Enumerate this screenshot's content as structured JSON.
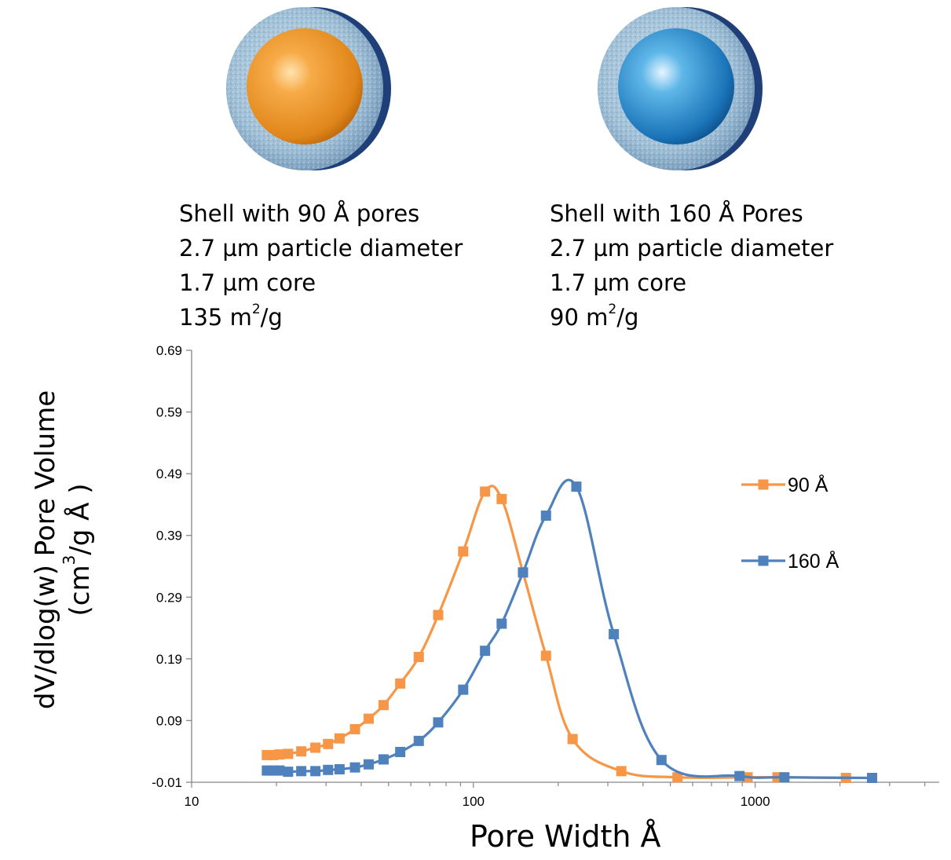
{
  "particles": [
    {
      "core_color": "orange",
      "caption": {
        "line1": "Shell with 90 Å pores",
        "line2": "2.7 µm particle diameter",
        "line3": "1.7 µm core",
        "line4_value": "135 m",
        "line4_sup": "2",
        "line4_unit": "/g"
      }
    },
    {
      "core_color": "blue",
      "caption": {
        "line1": "Shell with 160 Å Pores",
        "line2": "2.7 µm particle diameter",
        "line3": "1.7 µm core",
        "line4_value": "90 m",
        "line4_sup": "2",
        "line4_unit": "/g"
      }
    }
  ],
  "axis_text": {
    "ylabel_main": "dV/dlog(w) Pore Volume",
    "ylabel_unit_pre": "(cm",
    "ylabel_unit_sup": "3",
    "ylabel_unit_post": "/g Å )",
    "xlabel": "Pore Width Å"
  },
  "chart_data": {
    "type": "line",
    "x_scale": "log",
    "xlim": [
      10,
      4500
    ],
    "ylim": [
      -0.01,
      0.69
    ],
    "x_ticks": [
      10,
      100,
      1000
    ],
    "x_tick_labels": [
      "10",
      "100",
      "1000"
    ],
    "y_ticks": [
      -0.01,
      0.09,
      0.19,
      0.29,
      0.39,
      0.49,
      0.59,
      0.69
    ],
    "y_tick_labels": [
      "-0.01",
      "0.09",
      "0.19",
      "0.29",
      "0.39",
      "0.49",
      "0.59",
      "0.69"
    ],
    "xlabel": "Pore Width Å",
    "ylabel": "dV/dlog(w) Pore Volume (cm3/g Å )",
    "grid": false,
    "legend_position": "right",
    "series": [
      {
        "name": "90 Å",
        "color": "#F79646",
        "x": [
          18.5,
          19.5,
          20.5,
          22,
          24.5,
          27.5,
          30.5,
          33.5,
          38,
          42.5,
          48,
          55,
          64,
          75,
          92,
          110,
          126,
          150,
          181,
          225,
          335,
          530,
          940,
          1200,
          2100
        ],
        "y": [
          0.034,
          0.034,
          0.035,
          0.036,
          0.04,
          0.046,
          0.052,
          0.061,
          0.076,
          0.093,
          0.115,
          0.15,
          0.193,
          0.261,
          0.364,
          0.461,
          0.449,
          0.33,
          0.195,
          0.06,
          0.008,
          -0.002,
          -0.002,
          -0.002,
          -0.003
        ]
      },
      {
        "name": "160 Å",
        "color": "#4F81BD",
        "x": [
          18.5,
          19.5,
          20.5,
          22,
          24.5,
          27.5,
          30.5,
          33.5,
          38,
          42.5,
          48,
          55,
          64,
          75,
          92,
          110,
          126,
          150,
          181,
          232,
          315,
          465,
          880,
          1270,
          2600
        ],
        "y": [
          0.009,
          0.009,
          0.009,
          0.007,
          0.008,
          0.008,
          0.01,
          0.011,
          0.014,
          0.019,
          0.027,
          0.039,
          0.057,
          0.087,
          0.14,
          0.203,
          0.247,
          0.33,
          0.422,
          0.469,
          0.23,
          0.026,
          0.0,
          -0.002,
          -0.003
        ]
      }
    ]
  }
}
